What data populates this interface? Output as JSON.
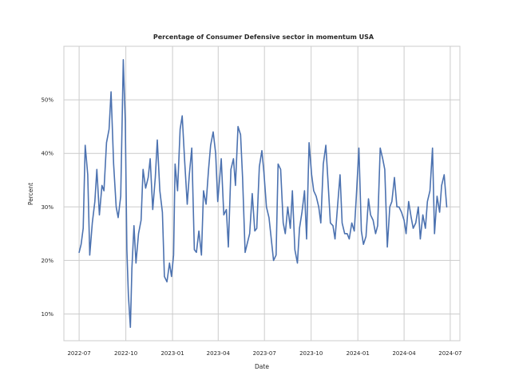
{
  "chart_data": {
    "type": "line",
    "title": "Percentage of Consumer Defensive sector in momentum USA",
    "xlabel": "Date",
    "ylabel": "Percent",
    "grid": true,
    "legend": "none",
    "line_color": "#4c72b0",
    "x_range": [
      "2022-06-01",
      "2024-07-20"
    ],
    "ylim": [
      5,
      60
    ],
    "x_ticks": [
      {
        "date": "2022-07-01",
        "label": "2022-07"
      },
      {
        "date": "2022-10-01",
        "label": "2022-10"
      },
      {
        "date": "2023-01-01",
        "label": "2023-01"
      },
      {
        "date": "2023-04-01",
        "label": "2023-04"
      },
      {
        "date": "2023-07-01",
        "label": "2023-07"
      },
      {
        "date": "2023-10-01",
        "label": "2023-10"
      },
      {
        "date": "2024-01-01",
        "label": "2024-01"
      },
      {
        "date": "2024-04-01",
        "label": "2024-04"
      },
      {
        "date": "2024-07-01",
        "label": "2024-07"
      }
    ],
    "y_ticks": [
      {
        "value": 10,
        "label": "10%"
      },
      {
        "value": 20,
        "label": "20%"
      },
      {
        "value": 30,
        "label": "30%"
      },
      {
        "value": 40,
        "label": "40%"
      },
      {
        "value": 50,
        "label": "50%"
      }
    ],
    "series": [
      {
        "x": [
          "2022-07-01",
          "2022-07-05",
          "2022-07-09",
          "2022-07-13",
          "2022-07-18",
          "2022-07-22",
          "2022-07-27",
          "2022-08-01",
          "2022-08-05",
          "2022-08-10",
          "2022-08-15",
          "2022-08-19",
          "2022-08-24",
          "2022-08-29",
          "2022-09-02",
          "2022-09-07",
          "2022-09-12",
          "2022-09-16",
          "2022-09-21",
          "2022-09-26",
          "2022-09-30",
          "2022-10-03",
          "2022-10-06",
          "2022-10-10",
          "2022-10-13",
          "2022-10-17",
          "2022-10-21",
          "2022-10-26",
          "2022-10-31",
          "2022-11-04",
          "2022-11-09",
          "2022-11-14",
          "2022-11-18",
          "2022-11-23",
          "2022-11-28",
          "2022-12-02",
          "2022-12-07",
          "2022-12-12",
          "2022-12-16",
          "2022-12-21",
          "2022-12-26",
          "2022-12-30",
          "2023-01-03",
          "2023-01-06",
          "2023-01-11",
          "2023-01-16",
          "2023-01-20",
          "2023-01-25",
          "2023-01-30",
          "2023-02-03",
          "2023-02-08",
          "2023-02-13",
          "2023-02-17",
          "2023-02-22",
          "2023-02-27",
          "2023-03-03",
          "2023-03-08",
          "2023-03-13",
          "2023-03-17",
          "2023-03-22",
          "2023-03-27",
          "2023-03-31",
          "2023-04-04",
          "2023-04-07",
          "2023-04-12",
          "2023-04-17",
          "2023-04-21",
          "2023-04-26",
          "2023-05-01",
          "2023-05-05",
          "2023-05-10",
          "2023-05-15",
          "2023-05-19",
          "2023-05-24",
          "2023-05-29",
          "2023-06-02",
          "2023-06-07",
          "2023-06-12",
          "2023-06-16",
          "2023-06-21",
          "2023-06-26",
          "2023-06-30",
          "2023-07-05",
          "2023-07-10",
          "2023-07-14",
          "2023-07-19",
          "2023-07-24",
          "2023-07-28",
          "2023-08-02",
          "2023-08-07",
          "2023-08-11",
          "2023-08-16",
          "2023-08-21",
          "2023-08-25",
          "2023-08-30",
          "2023-09-04",
          "2023-09-08",
          "2023-09-13",
          "2023-09-18",
          "2023-09-22",
          "2023-09-27",
          "2023-10-02",
          "2023-10-06",
          "2023-10-11",
          "2023-10-16",
          "2023-10-20",
          "2023-10-25",
          "2023-10-30",
          "2023-11-03",
          "2023-11-08",
          "2023-11-13",
          "2023-11-17",
          "2023-11-22",
          "2023-11-27",
          "2023-12-01",
          "2023-12-06",
          "2023-12-11",
          "2023-12-15",
          "2023-12-20",
          "2023-12-25",
          "2023-12-29",
          "2024-01-03",
          "2024-01-08",
          "2024-01-12",
          "2024-01-17",
          "2024-01-22",
          "2024-01-26",
          "2024-01-31",
          "2024-02-05",
          "2024-02-09",
          "2024-02-14",
          "2024-02-19",
          "2024-02-23",
          "2024-02-28",
          "2024-03-04",
          "2024-03-08",
          "2024-03-13",
          "2024-03-18",
          "2024-03-22",
          "2024-03-27",
          "2024-04-01",
          "2024-04-05",
          "2024-04-10",
          "2024-04-15",
          "2024-04-19",
          "2024-04-24",
          "2024-04-29",
          "2024-05-03",
          "2024-05-08",
          "2024-05-13",
          "2024-05-17",
          "2024-05-22",
          "2024-05-27",
          "2024-05-31",
          "2024-06-05",
          "2024-06-10",
          "2024-06-14",
          "2024-06-19",
          "2024-06-24"
        ],
        "y": [
          21.5,
          23.0,
          26.0,
          41.5,
          36.0,
          21.0,
          27.0,
          31.0,
          37.0,
          28.5,
          34.0,
          33.0,
          42.0,
          44.5,
          51.5,
          38.0,
          30.0,
          28.0,
          32.0,
          57.5,
          46.0,
          22.0,
          13.5,
          7.5,
          18.5,
          26.5,
          19.5,
          25.0,
          27.5,
          37.0,
          33.5,
          35.5,
          39.0,
          29.5,
          35.5,
          42.5,
          33.0,
          29.0,
          17.0,
          16.0,
          19.5,
          17.0,
          21.0,
          38.0,
          33.0,
          44.5,
          47.0,
          38.5,
          30.5,
          36.0,
          41.0,
          22.0,
          21.5,
          25.5,
          21.0,
          33.0,
          30.5,
          37.0,
          41.5,
          44.0,
          40.0,
          31.0,
          35.5,
          39.0,
          28.5,
          29.5,
          22.5,
          37.0,
          39.0,
          34.0,
          45.0,
          43.5,
          35.5,
          21.5,
          23.5,
          25.0,
          32.5,
          25.5,
          26.0,
          37.5,
          40.5,
          36.5,
          30.0,
          28.0,
          24.5,
          20.0,
          21.0,
          38.0,
          37.0,
          27.0,
          25.0,
          30.0,
          26.0,
          33.0,
          22.0,
          19.5,
          26.0,
          29.0,
          33.0,
          24.0,
          42.0,
          36.0,
          33.0,
          32.0,
          30.0,
          27.0,
          38.0,
          41.5,
          35.0,
          27.0,
          26.5,
          24.0,
          30.0,
          36.0,
          27.0,
          25.0,
          25.0,
          24.0,
          27.0,
          25.5,
          32.0,
          41.0,
          25.5,
          23.0,
          24.5,
          31.5,
          28.5,
          27.5,
          25.0,
          26.5,
          41.0,
          39.0,
          37.0,
          22.5,
          30.0,
          31.0,
          35.5,
          30.0,
          30.0,
          29.0,
          27.5,
          25.0,
          31.0,
          28.0,
          26.0,
          27.0,
          30.0,
          24.0,
          28.5,
          26.0,
          31.0,
          33.0,
          41.0,
          25.0,
          32.0,
          29.0,
          34.0,
          36.0,
          30.0
        ]
      }
    ]
  }
}
